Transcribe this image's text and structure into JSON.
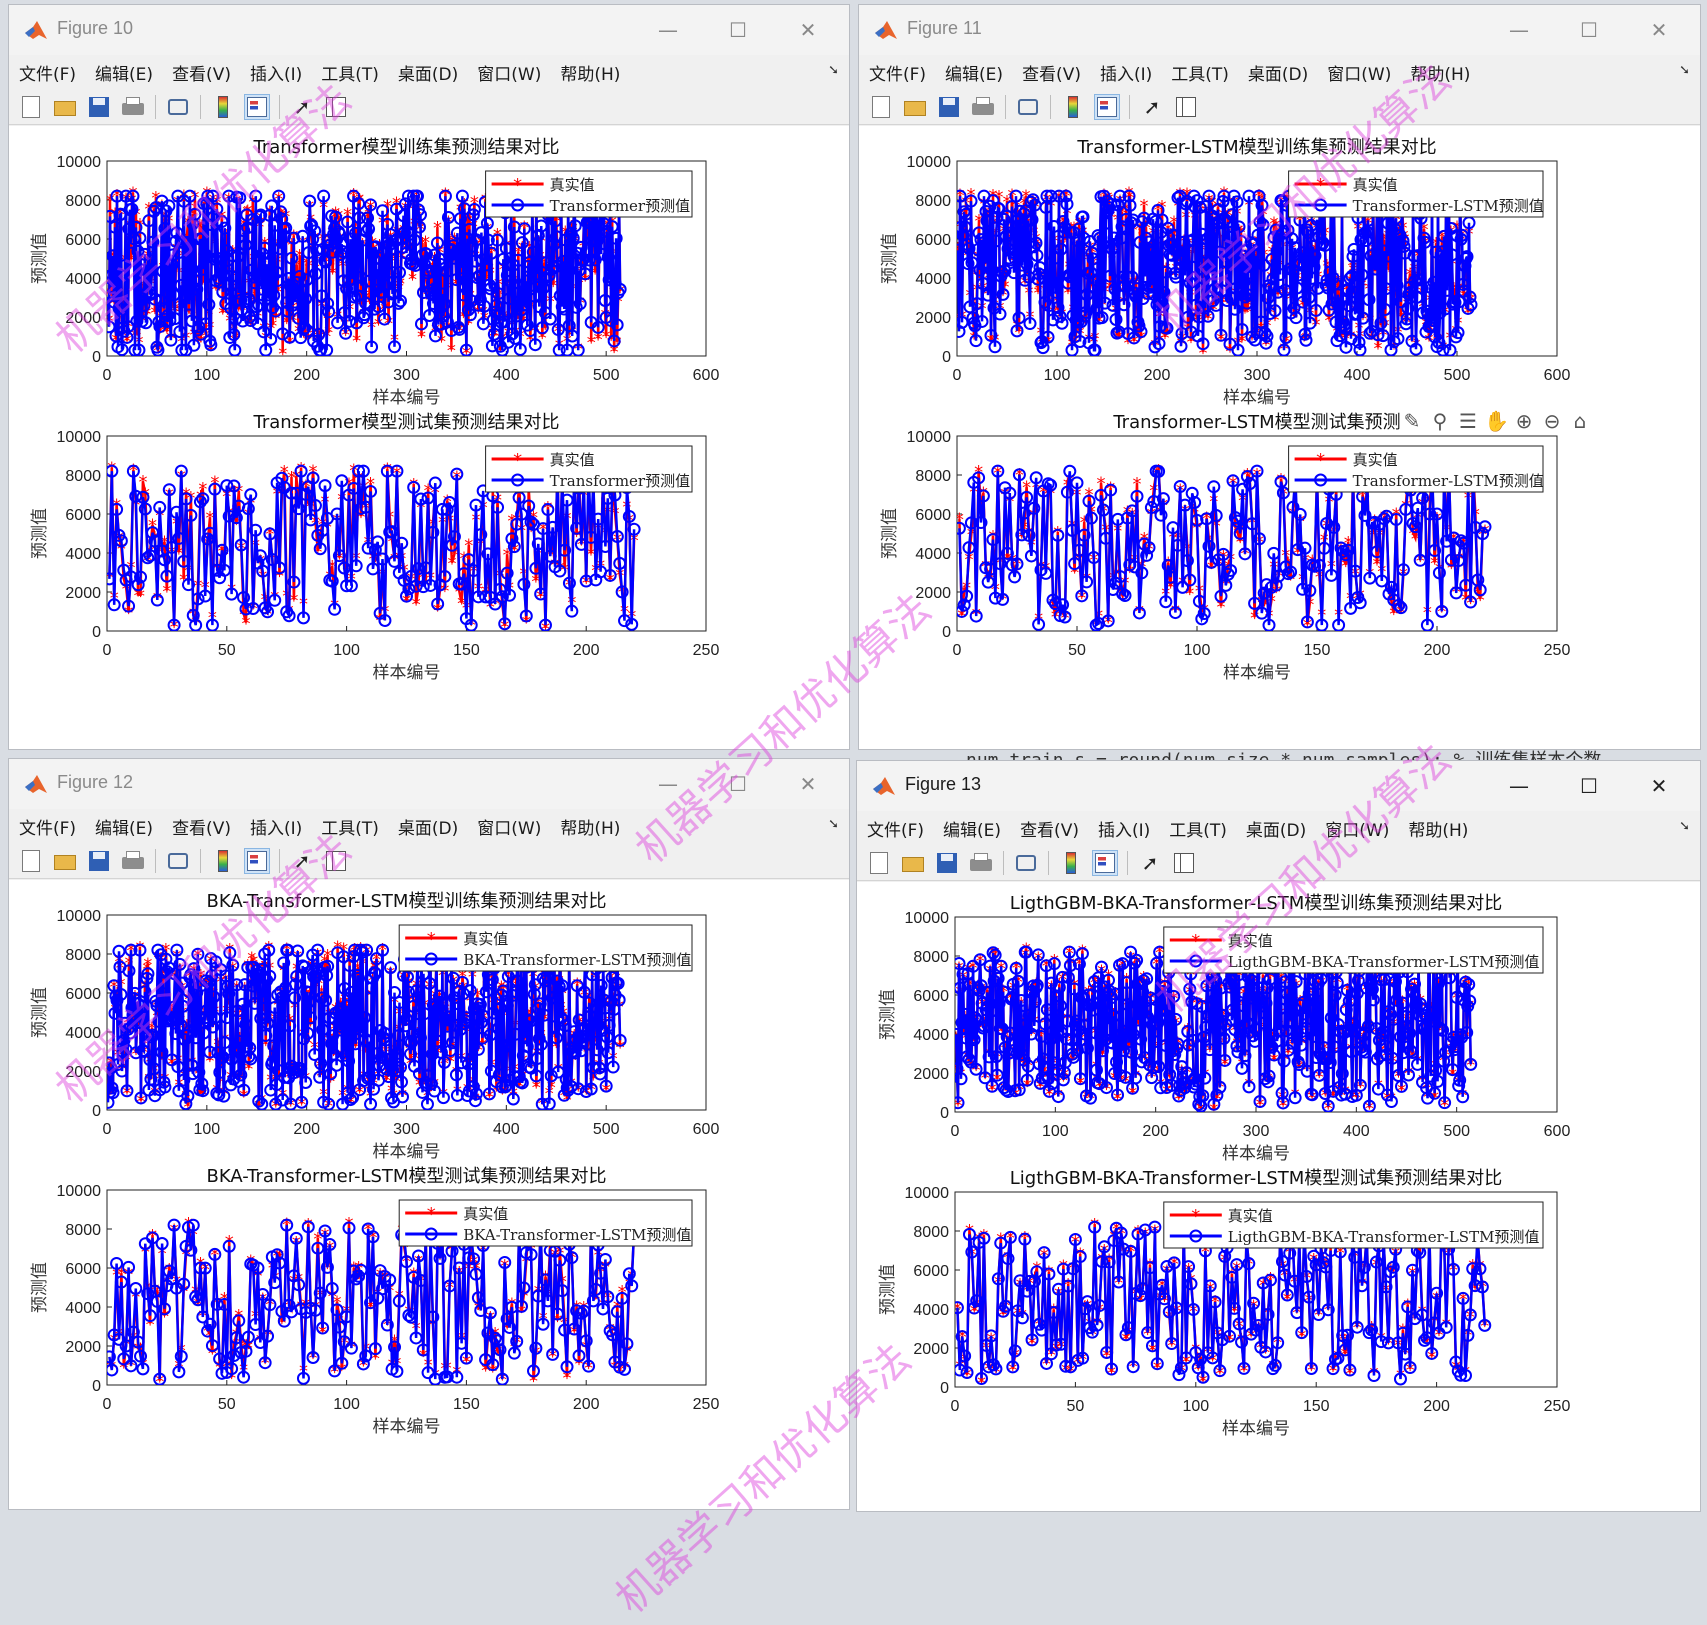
{
  "menu": [
    "文件(F)",
    "编辑(E)",
    "查看(V)",
    "插入(I)",
    "工具(T)",
    "桌面(D)",
    "窗口(W)",
    "帮助(H)"
  ],
  "window_buttons": {
    "minimize": "—",
    "maximize": "☐",
    "close": "✕"
  },
  "toolbar_icons": [
    "new-figure-icon",
    "open-file-icon",
    "save-icon",
    "print-icon",
    "link-plot-icon",
    "colorbar-icon",
    "legend-icon",
    "pointer-icon",
    "property-inspector-icon"
  ],
  "axes_toolbar_icons": [
    "✎",
    "⚲",
    "☰",
    "✋",
    "⊕",
    "⊖",
    "⌂"
  ],
  "background_code": "num_train_s = round(num_size * num_samples); % 训练集样本个数",
  "watermark": "机器学习和优化算法",
  "colors": {
    "true_series": "#ff0000",
    "pred_series": "#0000ff",
    "watermark": "#dc3cdc"
  },
  "figures": [
    {
      "title": "Figure 10",
      "active": false,
      "charts": [
        {
          "type": "line",
          "title": "Transformer模型训练集预测结果对比",
          "xlabel": "样本编号",
          "ylabel": "预测值",
          "xlim": [
            0,
            600
          ],
          "ylim": [
            0,
            10000
          ],
          "xticks": [
            0,
            100,
            200,
            300,
            400,
            500,
            600
          ],
          "yticks": [
            0,
            2000,
            4000,
            6000,
            8000,
            10000
          ],
          "n": 514,
          "legend": [
            "真实值",
            "Transformer预测值"
          ]
        },
        {
          "type": "line",
          "title": "Transformer模型测试集预测结果对比",
          "xlabel": "样本编号",
          "ylabel": "预测值",
          "xlim": [
            0,
            250
          ],
          "ylim": [
            0,
            10000
          ],
          "xticks": [
            0,
            50,
            100,
            150,
            200,
            250
          ],
          "yticks": [
            0,
            2000,
            4000,
            6000,
            8000,
            10000
          ],
          "n": 220,
          "legend": [
            "真实值",
            "Transformer预测值"
          ]
        }
      ]
    },
    {
      "title": "Figure 11",
      "active": false,
      "charts": [
        {
          "type": "line",
          "title": "Transformer-LSTM模型训练集预测结果对比",
          "xlabel": "样本编号",
          "ylabel": "预测值",
          "xlim": [
            0,
            600
          ],
          "ylim": [
            0,
            10000
          ],
          "xticks": [
            0,
            100,
            200,
            300,
            400,
            500,
            600
          ],
          "yticks": [
            0,
            2000,
            4000,
            6000,
            8000,
            10000
          ],
          "n": 514,
          "legend": [
            "真实值",
            "Transformer-LSTM预测值"
          ]
        },
        {
          "type": "line",
          "title": "Transformer-LSTM模型测试集预测",
          "xlabel": "样本编号",
          "ylabel": "预测值",
          "xlim": [
            0,
            250
          ],
          "ylim": [
            0,
            10000
          ],
          "xticks": [
            0,
            50,
            100,
            150,
            200,
            250
          ],
          "yticks": [
            0,
            2000,
            4000,
            6000,
            8000,
            10000
          ],
          "n": 220,
          "legend": [
            "真实值",
            "Transformer-LSTM预测值"
          ]
        }
      ]
    },
    {
      "title": "Figure 12",
      "active": false,
      "charts": [
        {
          "type": "line",
          "title": "BKA-Transformer-LSTM模型训练集预测结果对比",
          "xlabel": "样本编号",
          "ylabel": "预测值",
          "xlim": [
            0,
            600
          ],
          "ylim": [
            0,
            10000
          ],
          "xticks": [
            0,
            100,
            200,
            300,
            400,
            500,
            600
          ],
          "yticks": [
            0,
            2000,
            4000,
            6000,
            8000,
            10000
          ],
          "n": 514,
          "legend": [
            "真实值",
            "BKA-Transformer-LSTM预测值"
          ]
        },
        {
          "type": "line",
          "title": "BKA-Transformer-LSTM模型测试集预测结果对比",
          "xlabel": "样本编号",
          "ylabel": "预测值",
          "xlim": [
            0,
            250
          ],
          "ylim": [
            0,
            10000
          ],
          "xticks": [
            0,
            50,
            100,
            150,
            200,
            250
          ],
          "yticks": [
            0,
            2000,
            4000,
            6000,
            8000,
            10000
          ],
          "n": 220,
          "legend": [
            "真实值",
            "BKA-Transformer-LSTM预测值"
          ]
        }
      ]
    },
    {
      "title": "Figure 13",
      "active": true,
      "charts": [
        {
          "type": "line",
          "title": "LigthGBM-BKA-Transformer-LSTM模型训练集预测结果对比",
          "xlabel": "样本编号",
          "ylabel": "预测值",
          "xlim": [
            0,
            600
          ],
          "ylim": [
            0,
            10000
          ],
          "xticks": [
            0,
            100,
            200,
            300,
            400,
            500,
            600
          ],
          "yticks": [
            0,
            2000,
            4000,
            6000,
            8000,
            10000
          ],
          "n": 514,
          "legend": [
            "真实值",
            "LigthGBM-BKA-Transformer-LSTM预测值"
          ]
        },
        {
          "type": "line",
          "title": "LigthGBM-BKA-Transformer-LSTM模型测试集预测结果对比",
          "xlabel": "样本编号",
          "ylabel": "预测值",
          "xlim": [
            0,
            250
          ],
          "ylim": [
            0,
            10000
          ],
          "xticks": [
            0,
            50,
            100,
            150,
            200,
            250
          ],
          "yticks": [
            0,
            2000,
            4000,
            6000,
            8000,
            10000
          ],
          "n": 220,
          "legend": [
            "真实值",
            "LigthGBM-BKA-Transformer-LSTM预测值"
          ]
        }
      ]
    }
  ]
}
